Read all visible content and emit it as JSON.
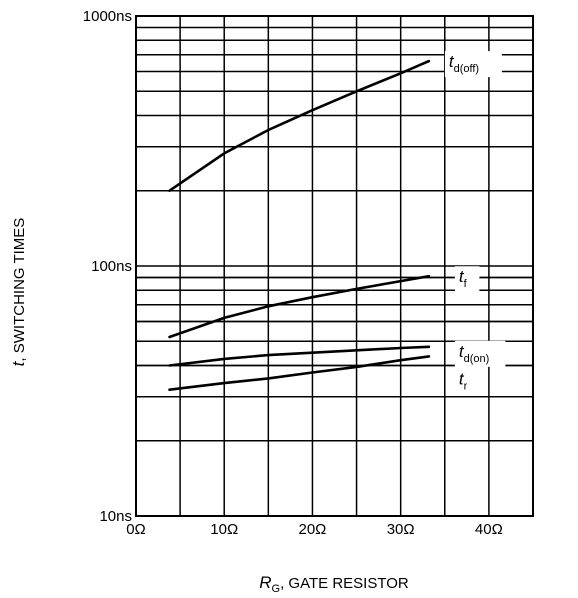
{
  "chart_data": {
    "type": "line",
    "xlabel": {
      "symbol": "R",
      "subscript": "G",
      "text": ", GATE RESISTOR"
    },
    "ylabel": {
      "symbol": "t",
      "text": ", SWITCHING TIMES"
    },
    "x_scale": "linear",
    "y_scale": "log",
    "xlim": [
      0,
      45
    ],
    "ylim": [
      10,
      1000
    ],
    "x_ticks": [
      0,
      10,
      20,
      30,
      40
    ],
    "x_tick_labels": [
      "0Ω",
      "10Ω",
      "20Ω",
      "30Ω",
      "40Ω"
    ],
    "y_ticks": [
      10,
      100,
      1000
    ],
    "y_tick_labels": [
      "10ns",
      "100ns",
      "1000ns"
    ],
    "grid": true,
    "series": [
      {
        "symbol": "t",
        "subscript": "d(off)",
        "x": [
          3.8,
          10,
          15,
          20,
          25,
          30,
          33.2
        ],
        "y": [
          200,
          282,
          350,
          420,
          500,
          590,
          660
        ]
      },
      {
        "symbol": "t",
        "subscript": "f",
        "x": [
          3.8,
          10,
          15,
          20,
          25,
          30,
          33.2
        ],
        "y": [
          52,
          62,
          69,
          75,
          81,
          87,
          91
        ]
      },
      {
        "symbol": "t",
        "subscript": "d(on)",
        "x": [
          3.8,
          10,
          15,
          20,
          25,
          30,
          33.2
        ],
        "y": [
          40,
          42.5,
          44,
          45,
          46,
          47,
          47.5
        ]
      },
      {
        "symbol": "t",
        "subscript": "r",
        "x": [
          3.8,
          10,
          15,
          20,
          25,
          30,
          33.2
        ],
        "y": [
          32,
          34,
          35.5,
          37.5,
          39.5,
          42,
          43.5
        ]
      }
    ]
  }
}
